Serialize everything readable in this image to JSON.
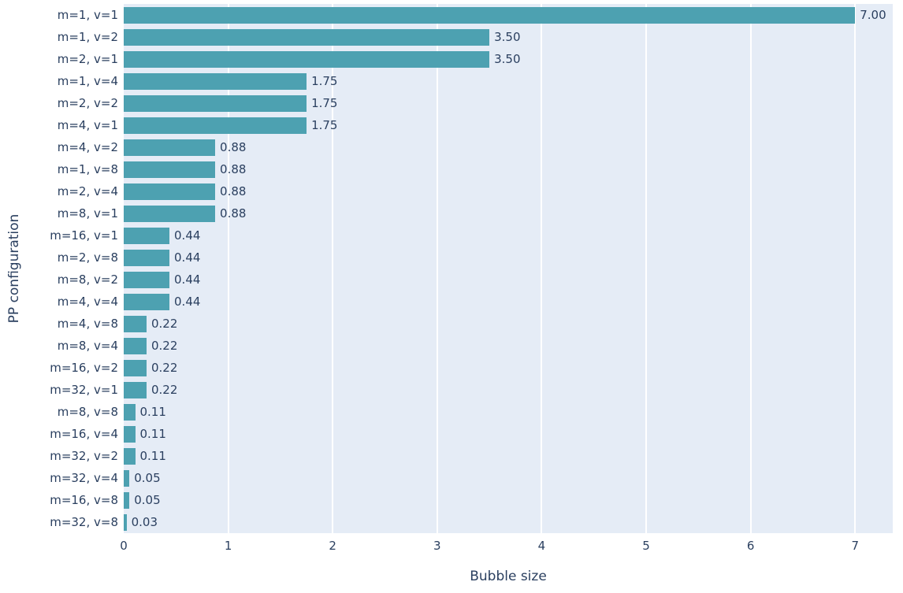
{
  "chart_data": {
    "type": "bar",
    "orientation": "horizontal",
    "title": "",
    "xlabel": "Bubble size",
    "ylabel": "PP configuration",
    "xlim": [
      0,
      7.36
    ],
    "xticks": [
      0,
      1,
      2,
      3,
      4,
      5,
      6,
      7
    ],
    "grid": true,
    "legend_position": "none",
    "categories": [
      "m=1, v=1",
      "m=1, v=2",
      "m=2, v=1",
      "m=1, v=4",
      "m=2, v=2",
      "m=4, v=1",
      "m=4, v=2",
      "m=1, v=8",
      "m=2, v=4",
      "m=8, v=1",
      "m=16, v=1",
      "m=2, v=8",
      "m=8, v=2",
      "m=4, v=4",
      "m=4, v=8",
      "m=8, v=4",
      "m=16, v=2",
      "m=32, v=1",
      "m=8, v=8",
      "m=16, v=4",
      "m=32, v=2",
      "m=32, v=4",
      "m=16, v=8",
      "m=32, v=8"
    ],
    "values": [
      7,
      3.5,
      3.5,
      1.75,
      1.75,
      1.75,
      0.875,
      0.875,
      0.875,
      0.875,
      0.4375,
      0.4375,
      0.4375,
      0.4375,
      0.21875,
      0.21875,
      0.21875,
      0.21875,
      0.109375,
      0.109375,
      0.109375,
      0.0546875,
      0.0546875,
      0.02734375
    ],
    "value_labels": [
      "7.00",
      "3.50",
      "3.50",
      "1.75",
      "1.75",
      "1.75",
      "0.88",
      "0.88",
      "0.88",
      "0.88",
      "0.44",
      "0.44",
      "0.44",
      "0.44",
      "0.22",
      "0.22",
      "0.22",
      "0.22",
      "0.11",
      "0.11",
      "0.11",
      "0.05",
      "0.05",
      "0.03"
    ],
    "colors": {
      "bar": "#4da1b1",
      "plot_bg": "#e5ecf6",
      "grid": "#ffffff",
      "text": "#2a3f5f",
      "page_bg": "#ffffff"
    }
  }
}
